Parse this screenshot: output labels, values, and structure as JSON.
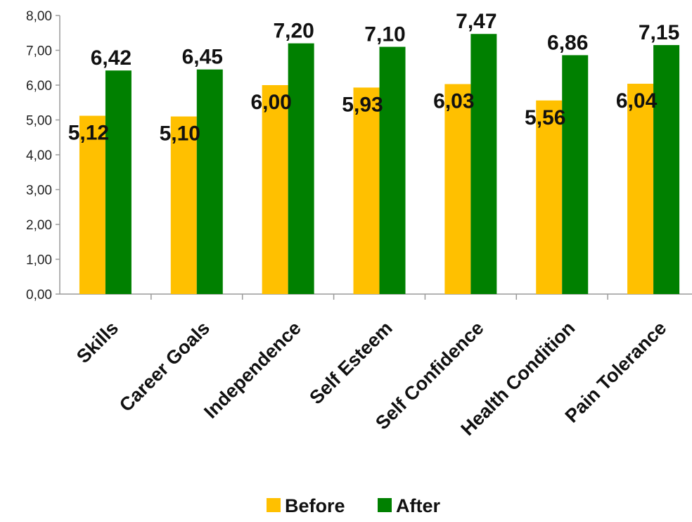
{
  "chart_data": {
    "type": "bar",
    "categories": [
      "Skills",
      "Career Goals",
      "Independence",
      "Self Esteem",
      "Self Confidence",
      "Health Condition",
      "Pain Tolerance"
    ],
    "series": [
      {
        "name": "Before",
        "color": "#FFC000",
        "values": [
          5.12,
          5.1,
          6.0,
          5.93,
          6.03,
          5.56,
          6.04
        ],
        "labels": [
          "5,12",
          "5,10",
          "6,00",
          "5,93",
          "6,03",
          "5,56",
          "6,04"
        ]
      },
      {
        "name": "After",
        "color": "#008000",
        "values": [
          6.42,
          6.45,
          7.2,
          7.1,
          7.47,
          6.86,
          7.15
        ],
        "labels": [
          "6,42",
          "6,45",
          "7,20",
          "7,10",
          "7,47",
          "6,86",
          "7,15"
        ]
      }
    ],
    "yticks": [
      "0,00",
      "1,00",
      "2,00",
      "3,00",
      "4,00",
      "5,00",
      "6,00",
      "7,00",
      "8,00"
    ],
    "ylim": [
      0,
      8
    ],
    "grid": false,
    "legend": "bottom"
  }
}
